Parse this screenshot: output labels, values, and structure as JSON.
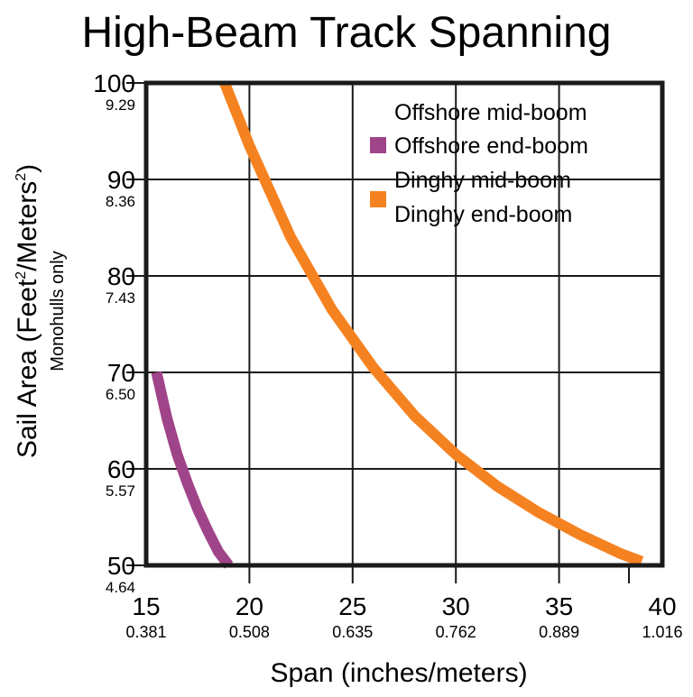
{
  "chart_data": {
    "type": "line",
    "title": "High-Beam Track Spanning",
    "xlabel": "Span (inches/meters)",
    "ylabel_main": "Sail Area (Feet",
    "ylabel_sup1": "2",
    "ylabel_mid": "/Meters",
    "ylabel_sup2": "2",
    "ylabel_end": ")",
    "ylabel_sub": "Monohulls only",
    "xlim": [
      15,
      40
    ],
    "ylim": [
      50,
      100
    ],
    "x_ticks": [
      {
        "value": 15,
        "label": "15",
        "sublabel": "0.381"
      },
      {
        "value": 20,
        "label": "20",
        "sublabel": "0.508"
      },
      {
        "value": 25,
        "label": "25",
        "sublabel": "0.635"
      },
      {
        "value": 30,
        "label": "30",
        "sublabel": "0.762"
      },
      {
        "value": 35,
        "label": "35",
        "sublabel": "0.889"
      },
      {
        "value": 40,
        "label": "40",
        "sublabel": "1.016"
      }
    ],
    "y_ticks": [
      {
        "value": 100,
        "label": "100",
        "sublabel": "9.29"
      },
      {
        "value": 90,
        "label": "90",
        "sublabel": "8.36"
      },
      {
        "value": 80,
        "label": "80",
        "sublabel": "7.43"
      },
      {
        "value": 70,
        "label": "70",
        "sublabel": "6.50"
      },
      {
        "value": 60,
        "label": "60",
        "sublabel": "5.57"
      },
      {
        "value": 50,
        "label": "50",
        "sublabel": "4.64"
      }
    ],
    "grid": true,
    "legend_position": "top-right",
    "legend": [
      {
        "color": "#a0448a",
        "labels": [
          "Offshore mid-boom",
          "Offshore end-boom"
        ]
      },
      {
        "color": "#f58220",
        "labels": [
          "Dinghy mid-boom",
          "Dinghy end-boom"
        ]
      }
    ],
    "series": [
      {
        "color": "#a0448a",
        "x": [
          15.5,
          16.0,
          16.5,
          17.0,
          17.5,
          18.0,
          18.5,
          19.0
        ],
        "y": [
          70.0,
          65.3,
          61.5,
          58.5,
          55.8,
          53.5,
          51.4,
          50.0
        ]
      },
      {
        "color": "#f58220",
        "x": [
          18.8,
          20.0,
          22.0,
          24.0,
          26.0,
          28.0,
          30.0,
          32.0,
          34.0,
          36.0,
          38.0,
          39.0
        ],
        "y": [
          100.0,
          93.5,
          84.0,
          76.5,
          70.5,
          65.5,
          61.5,
          58.2,
          55.5,
          53.2,
          51.2,
          50.4
        ]
      }
    ]
  }
}
